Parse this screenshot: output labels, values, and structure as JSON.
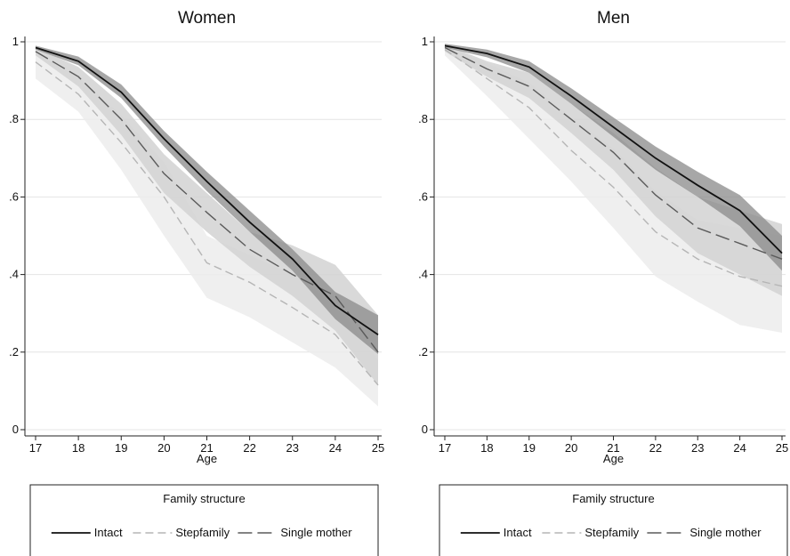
{
  "chart_data": [
    {
      "type": "line",
      "title": "Women",
      "xlabel": "Age",
      "ylabel": "",
      "x": [
        17,
        18,
        19,
        20,
        21,
        22,
        23,
        24,
        25
      ],
      "xlim": [
        17,
        25
      ],
      "ylim": [
        0,
        1
      ],
      "yticks": [
        0,
        0.2,
        0.4,
        0.6,
        0.8,
        1
      ],
      "ytick_labels": [
        "0",
        ".2",
        ".4",
        ".6",
        ".8",
        "1"
      ],
      "xtick_labels": [
        "17",
        "18",
        "19",
        "20",
        "21",
        "22",
        "23",
        "24",
        "25"
      ],
      "grid": true,
      "legend_title": "Family structure",
      "legend_position": "bottom",
      "series": [
        {
          "name": "Intact",
          "color": "#111111",
          "dash": "solid",
          "values": [
            0.985,
            0.95,
            0.87,
            0.75,
            0.64,
            0.535,
            0.44,
            0.32,
            0.245
          ],
          "ci_lower": [
            0.98,
            0.94,
            0.855,
            0.73,
            0.615,
            0.51,
            0.41,
            0.285,
            0.195
          ],
          "ci_upper": [
            0.99,
            0.962,
            0.89,
            0.77,
            0.665,
            0.565,
            0.465,
            0.355,
            0.295
          ],
          "ci_color": "#8a8a8a"
        },
        {
          "name": "Stepfamily",
          "color": "#b5b5b5",
          "dash": "short",
          "values": [
            0.948,
            0.865,
            0.74,
            0.6,
            0.43,
            0.38,
            0.315,
            0.245,
            0.115
          ],
          "ci_lower": [
            0.905,
            0.82,
            0.67,
            0.5,
            0.34,
            0.29,
            0.225,
            0.16,
            0.06
          ],
          "ci_upper": [
            0.97,
            0.91,
            0.81,
            0.69,
            0.5,
            0.45,
            0.4,
            0.325,
            0.18
          ],
          "ci_color": "#ececec"
        },
        {
          "name": "Single mother",
          "color": "#5a5a5a",
          "dash": "long",
          "values": [
            0.975,
            0.91,
            0.8,
            0.66,
            0.56,
            0.465,
            0.4,
            0.345,
            0.2
          ],
          "ci_lower": [
            0.965,
            0.885,
            0.76,
            0.61,
            0.51,
            0.42,
            0.345,
            0.255,
            0.115
          ],
          "ci_upper": [
            0.985,
            0.935,
            0.84,
            0.71,
            0.61,
            0.51,
            0.475,
            0.425,
            0.295
          ],
          "ci_color": "#d2d2d2"
        }
      ]
    },
    {
      "type": "line",
      "title": "Men",
      "xlabel": "Age",
      "ylabel": "",
      "x": [
        17,
        18,
        19,
        20,
        21,
        22,
        23,
        24,
        25
      ],
      "xlim": [
        17,
        25
      ],
      "ylim": [
        0,
        1
      ],
      "yticks": [
        0,
        0.2,
        0.4,
        0.6,
        0.8,
        1
      ],
      "ytick_labels": [
        "0",
        ".2",
        ".4",
        ".6",
        ".8",
        "1"
      ],
      "xtick_labels": [
        "17",
        "18",
        "19",
        "20",
        "21",
        "22",
        "23",
        "24",
        "25"
      ],
      "grid": true,
      "legend_title": "Family structure",
      "legend_position": "bottom",
      "series": [
        {
          "name": "Intact",
          "color": "#111111",
          "dash": "solid",
          "values": [
            0.99,
            0.97,
            0.935,
            0.86,
            0.78,
            0.7,
            0.63,
            0.565,
            0.455
          ],
          "ci_lower": [
            0.985,
            0.96,
            0.92,
            0.84,
            0.755,
            0.67,
            0.6,
            0.525,
            0.41
          ],
          "ci_upper": [
            0.995,
            0.98,
            0.95,
            0.88,
            0.805,
            0.73,
            0.665,
            0.605,
            0.5
          ],
          "ci_color": "#8a8a8a"
        },
        {
          "name": "Stepfamily",
          "color": "#b5b5b5",
          "dash": "short",
          "values": [
            0.98,
            0.905,
            0.83,
            0.72,
            0.625,
            0.51,
            0.44,
            0.395,
            0.37
          ],
          "ci_lower": [
            0.965,
            0.86,
            0.75,
            0.64,
            0.52,
            0.395,
            0.33,
            0.27,
            0.25
          ],
          "ci_upper": [
            0.99,
            0.945,
            0.895,
            0.805,
            0.725,
            0.615,
            0.54,
            0.52,
            0.5
          ],
          "ci_color": "#ececec"
        },
        {
          "name": "Single mother",
          "color": "#5a5a5a",
          "dash": "long",
          "values": [
            0.985,
            0.93,
            0.885,
            0.8,
            0.715,
            0.605,
            0.52,
            0.48,
            0.44
          ],
          "ci_lower": [
            0.975,
            0.91,
            0.855,
            0.765,
            0.67,
            0.55,
            0.455,
            0.4,
            0.345
          ],
          "ci_upper": [
            0.993,
            0.95,
            0.92,
            0.84,
            0.765,
            0.675,
            0.6,
            0.565,
            0.53
          ],
          "ci_color": "#d2d2d2"
        }
      ]
    }
  ]
}
